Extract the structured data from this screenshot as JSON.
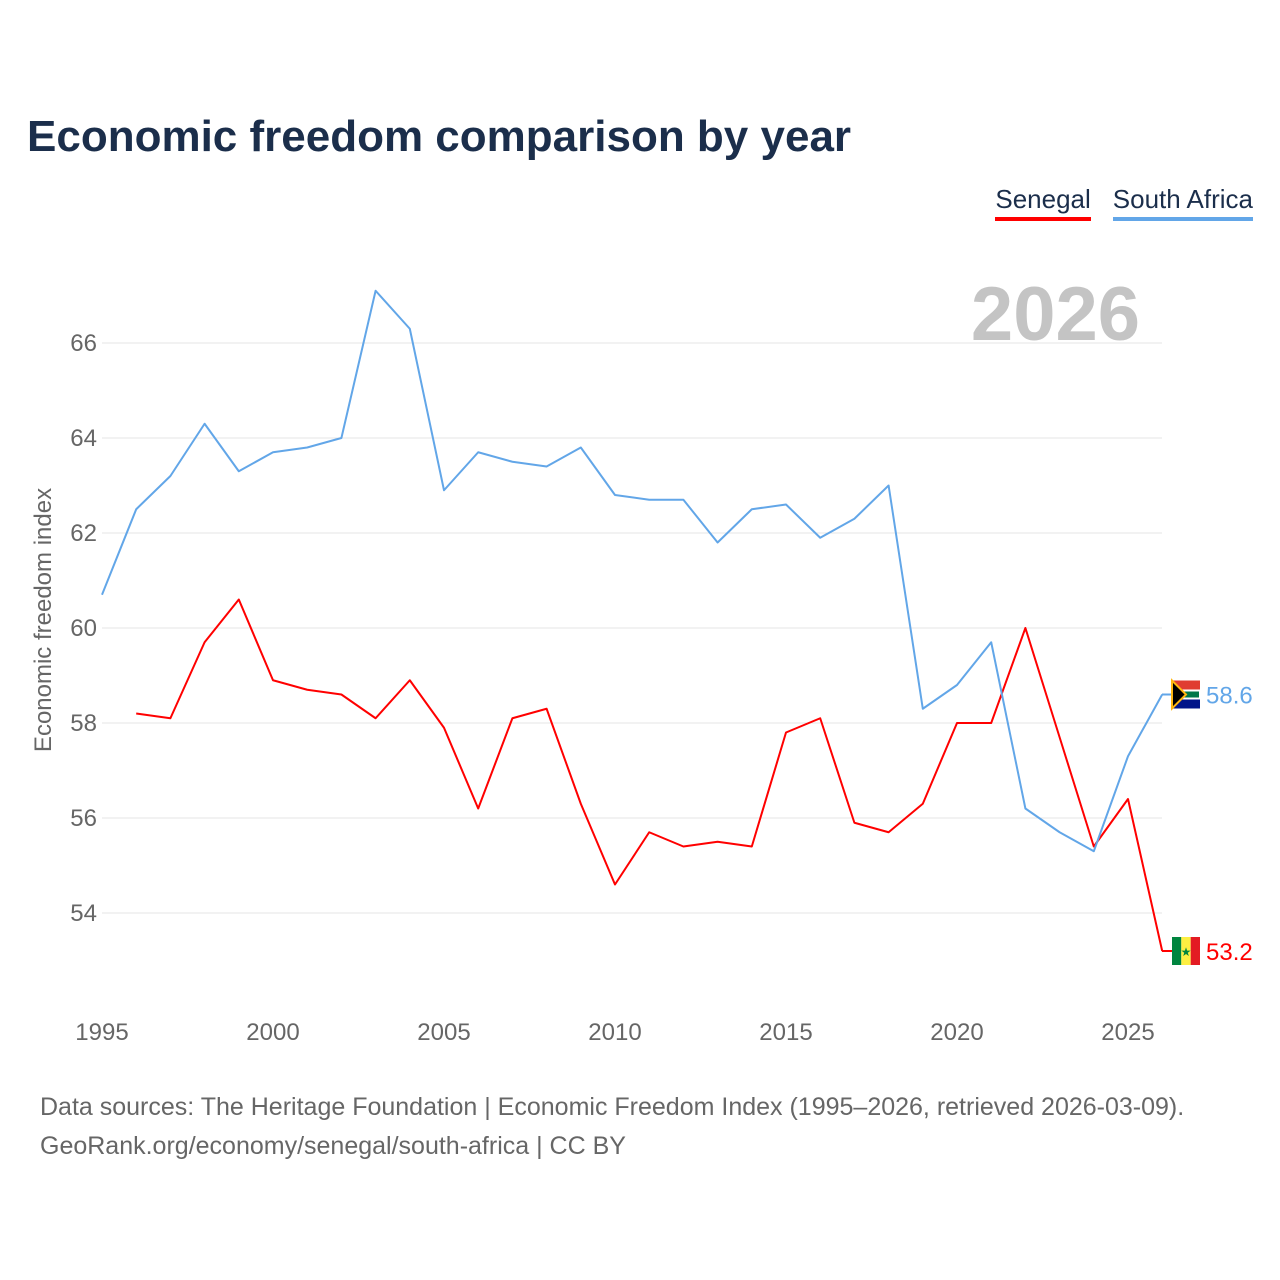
{
  "title": "Economic freedom comparison by year",
  "footer": {
    "line1": "Data sources: The Heritage Foundation | Economic Freedom Index (1995–2026, retrieved 2026-03-09).",
    "line2": "GeoRank.org/economy/senegal/south-africa | CC BY"
  },
  "chart_data": {
    "type": "line",
    "title": "Economic freedom comparison by year",
    "xlabel": "",
    "ylabel": "Economic freedom index",
    "year_watermark": "2026",
    "x": [
      1995,
      1996,
      1997,
      1998,
      1999,
      2000,
      2001,
      2002,
      2003,
      2004,
      2005,
      2006,
      2007,
      2008,
      2009,
      2010,
      2011,
      2012,
      2013,
      2014,
      2015,
      2016,
      2017,
      2018,
      2019,
      2020,
      2021,
      2022,
      2023,
      2024,
      2025,
      2026
    ],
    "xticks": [
      "1995",
      "2000",
      "2005",
      "2010",
      "2015",
      "2020",
      "2025"
    ],
    "yticks": [
      "54",
      "56",
      "58",
      "60",
      "62",
      "64",
      "66"
    ],
    "xlim": [
      1995,
      2026
    ],
    "ylim": [
      52,
      68
    ],
    "grid": true,
    "legend_position": "top-right",
    "series": [
      {
        "name": "Senegal",
        "color": "#ff0000",
        "end_label": "53.2",
        "values": [
          null,
          58.2,
          58.1,
          59.7,
          60.6,
          58.9,
          58.7,
          58.6,
          58.1,
          58.9,
          57.9,
          56.2,
          58.1,
          58.3,
          56.3,
          54.6,
          55.7,
          55.4,
          55.5,
          55.4,
          57.8,
          58.1,
          55.9,
          55.7,
          56.3,
          58.0,
          58.0,
          60.0,
          57.7,
          55.4,
          56.4,
          53.2
        ]
      },
      {
        "name": "South Africa",
        "color": "#62a6e8",
        "end_label": "58.6",
        "values": [
          60.7,
          62.5,
          63.2,
          64.3,
          63.3,
          63.7,
          63.8,
          64.0,
          67.1,
          66.3,
          62.9,
          63.7,
          63.5,
          63.4,
          63.8,
          62.8,
          62.7,
          62.7,
          61.8,
          62.5,
          62.6,
          61.9,
          62.3,
          63.0,
          58.3,
          58.8,
          59.7,
          56.2,
          55.7,
          55.3,
          57.3,
          58.6
        ]
      }
    ]
  }
}
